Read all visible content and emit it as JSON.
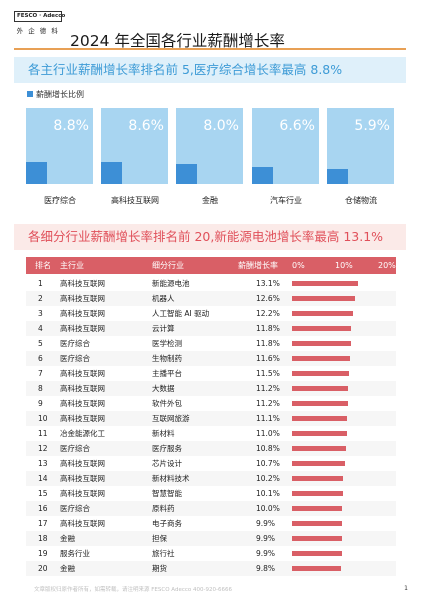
{
  "logo": {
    "brand": "FESCO · Adecco",
    "sub": "外 企 德 科"
  },
  "page_title": "2024 年全国各行业薪酬增长率",
  "section1": {
    "heading": "各主行业薪酬增长率排名前 5,医疗综合增长率最高 8.8%",
    "legend": "薪酬增长比例"
  },
  "section2": {
    "heading": "各细分行业薪酬增长率排名前 20,新能源电池增长率最高 13.1%",
    "columns": {
      "rank": "排名",
      "industry": "主行业",
      "sub": "细分行业",
      "rate": "薪酬增长率"
    },
    "scale": [
      "0%",
      "10%",
      "20%"
    ]
  },
  "footer": "文章版权归原作者所有，如需转载，请注明来源 FESCO Adecco 400-920-6666",
  "page_number": "1",
  "colors": {
    "accent_blue": "#3d8fd6",
    "card_bg": "#a8d5f1",
    "accent_red": "#d95f66"
  },
  "chart_data": [
    {
      "type": "bar",
      "categories": [
        "医疗综合",
        "高科技互联网",
        "金融",
        "汽车行业",
        "仓储物流"
      ],
      "values": [
        8.8,
        8.6,
        8.0,
        6.6,
        5.9
      ],
      "labels": [
        "8.8%",
        "8.6%",
        "8.0%",
        "6.6%",
        "5.9%"
      ],
      "legend": "薪酬增长比例",
      "ylim": [
        0,
        30
      ]
    },
    {
      "type": "bar",
      "orientation": "horizontal",
      "xlim": [
        0,
        20
      ],
      "ticks": [
        "0%",
        "10%",
        "20%"
      ],
      "rows": [
        {
          "rank": "1",
          "industry": "高科技互联网",
          "sub": "新能源电池",
          "rate": "13.1%",
          "value": 13.1
        },
        {
          "rank": "2",
          "industry": "高科技互联网",
          "sub": "机器人",
          "rate": "12.6%",
          "value": 12.6
        },
        {
          "rank": "3",
          "industry": "高科技互联网",
          "sub": "人工智能 AI 驱动",
          "rate": "12.2%",
          "value": 12.2
        },
        {
          "rank": "4",
          "industry": "高科技互联网",
          "sub": "云计算",
          "rate": "11.8%",
          "value": 11.8
        },
        {
          "rank": "5",
          "industry": "医疗综合",
          "sub": "医学检测",
          "rate": "11.8%",
          "value": 11.8
        },
        {
          "rank": "6",
          "industry": "医疗综合",
          "sub": "生物制药",
          "rate": "11.6%",
          "value": 11.6
        },
        {
          "rank": "7",
          "industry": "高科技互联网",
          "sub": "主播平台",
          "rate": "11.5%",
          "value": 11.5
        },
        {
          "rank": "8",
          "industry": "高科技互联网",
          "sub": "大数据",
          "rate": "11.2%",
          "value": 11.2
        },
        {
          "rank": "9",
          "industry": "高科技互联网",
          "sub": "软件外包",
          "rate": "11.2%",
          "value": 11.2
        },
        {
          "rank": "10",
          "industry": "高科技互联网",
          "sub": "互联网旅游",
          "rate": "11.1%",
          "value": 11.1
        },
        {
          "rank": "11",
          "industry": "冶金能源化工",
          "sub": "新材料",
          "rate": "11.0%",
          "value": 11.0
        },
        {
          "rank": "12",
          "industry": "医疗综合",
          "sub": "医疗服务",
          "rate": "10.8%",
          "value": 10.8
        },
        {
          "rank": "13",
          "industry": "高科技互联网",
          "sub": "芯片设计",
          "rate": "10.7%",
          "value": 10.7
        },
        {
          "rank": "14",
          "industry": "高科技互联网",
          "sub": "新材料技术",
          "rate": "10.2%",
          "value": 10.2
        },
        {
          "rank": "15",
          "industry": "高科技互联网",
          "sub": "智慧智能",
          "rate": "10.1%",
          "value": 10.1
        },
        {
          "rank": "16",
          "industry": "医疗综合",
          "sub": "原料药",
          "rate": "10.0%",
          "value": 10.0
        },
        {
          "rank": "17",
          "industry": "高科技互联网",
          "sub": "电子商务",
          "rate": "9.9%",
          "value": 9.9
        },
        {
          "rank": "18",
          "industry": "金融",
          "sub": "担保",
          "rate": "9.9%",
          "value": 9.9
        },
        {
          "rank": "19",
          "industry": "服务行业",
          "sub": "旅行社",
          "rate": "9.9%",
          "value": 9.9
        },
        {
          "rank": "20",
          "industry": "金融",
          "sub": "期货",
          "rate": "9.8%",
          "value": 9.8
        }
      ]
    }
  ]
}
